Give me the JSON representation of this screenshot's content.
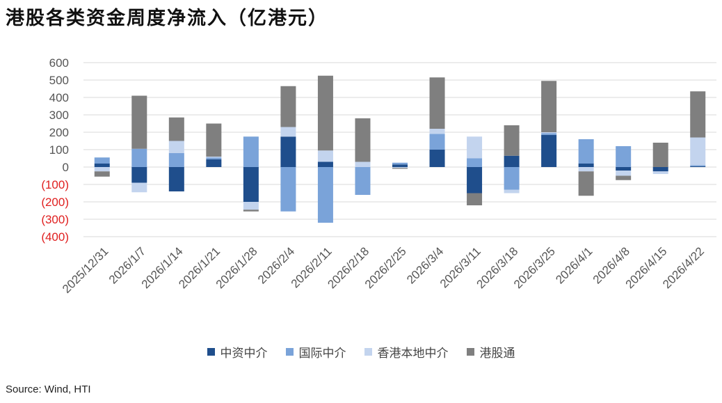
{
  "title": "港股各类资金周度净流入（亿港元）",
  "source": "Source: Wind, HTI",
  "colors": {
    "series": [
      "#1f4e8c",
      "#7aa3d9",
      "#c3d4ee",
      "#7f7f7f"
    ],
    "negative_tick": "#e02020",
    "axis_text": "#555555",
    "grid": "#d9d9d9"
  },
  "chart_data": {
    "type": "bar",
    "stacked": true,
    "title": "港股各类资金周度净流入（亿港元）",
    "ylim": [
      -400,
      600
    ],
    "yticks": [
      600,
      500,
      400,
      300,
      200,
      100,
      0,
      -100,
      -200,
      -300,
      -400
    ],
    "ytick_labels": [
      "600",
      "500",
      "400",
      "300",
      "200",
      "100",
      "0",
      "(100)",
      "(200)",
      "(300)",
      "(400)"
    ],
    "grid": true,
    "legend_position": "bottom",
    "categories": [
      "2025/12/31",
      "2026/1/7",
      "2026/1/14",
      "2026/1/21",
      "2026/1/28",
      "2026/2/4",
      "2026/2/11",
      "2026/2/18",
      "2026/2/25",
      "2026/3/4",
      "2026/3/11",
      "2026/3/18",
      "2026/3/25",
      "2026/4/1",
      "2026/4/8",
      "2026/4/15",
      "2026/4/22"
    ],
    "series": [
      {
        "name": "中资中介",
        "values": [
          20,
          -90,
          -140,
          45,
          -200,
          175,
          30,
          0,
          15,
          100,
          -150,
          65,
          185,
          20,
          -20,
          -25,
          5
        ]
      },
      {
        "name": "国际中介",
        "values": [
          35,
          105,
          80,
          10,
          175,
          -255,
          -320,
          -160,
          10,
          90,
          50,
          -130,
          10,
          140,
          120,
          0,
          5
        ]
      },
      {
        "name": "香港本地中介",
        "values": [
          -25,
          -55,
          70,
          5,
          -45,
          55,
          65,
          30,
          -5,
          30,
          125,
          -20,
          5,
          -25,
          -30,
          -15,
          160
        ]
      },
      {
        "name": "港股通",
        "values": [
          -30,
          305,
          135,
          190,
          -10,
          235,
          430,
          250,
          -5,
          295,
          -70,
          175,
          295,
          -140,
          -25,
          140,
          265
        ]
      }
    ]
  }
}
